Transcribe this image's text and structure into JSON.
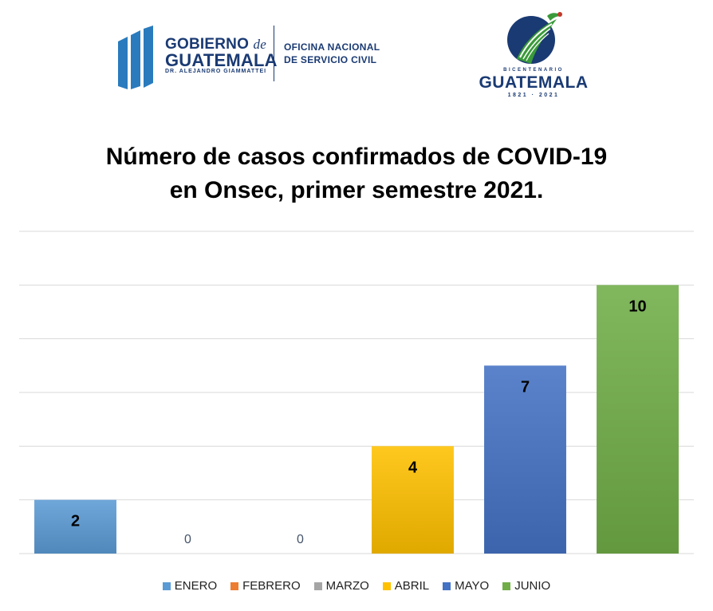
{
  "logos": {
    "gobierno": {
      "line1": "GOBIERNO",
      "de": "de",
      "line2": "GUATEMALA",
      "subline": "DR. ALEJANDRO GIAMMATTEI",
      "office_line1": "OFICINA NACIONAL",
      "office_line2": "DE SERVICIO CIVIL",
      "color": "#1a3a73",
      "accent_color": "#2a7bbd"
    },
    "bicentenario": {
      "word": "BICENTENARIO",
      "country": "GUATEMALA",
      "years": "1821 · 2021",
      "color": "#1a3a73",
      "green": "#3a9a3a"
    }
  },
  "chart_data": {
    "type": "bar",
    "title_line1": "Número de casos confirmados de COVID-19",
    "title_line2": "en Onsec, primer semestre 2021.",
    "categories": [
      "ENERO",
      "FEBRERO",
      "MARZO",
      "ABRIL",
      "MAYO",
      "JUNIO"
    ],
    "values": [
      2,
      0,
      0,
      4,
      7,
      10
    ],
    "colors": [
      "#5b9bd5",
      "#ed7d31",
      "#a5a5a5",
      "#ffc000",
      "#4472c4",
      "#70ad47"
    ],
    "ylim": [
      0,
      12
    ],
    "grid": true,
    "legend_position": "bottom",
    "xlabel": "",
    "ylabel": ""
  }
}
